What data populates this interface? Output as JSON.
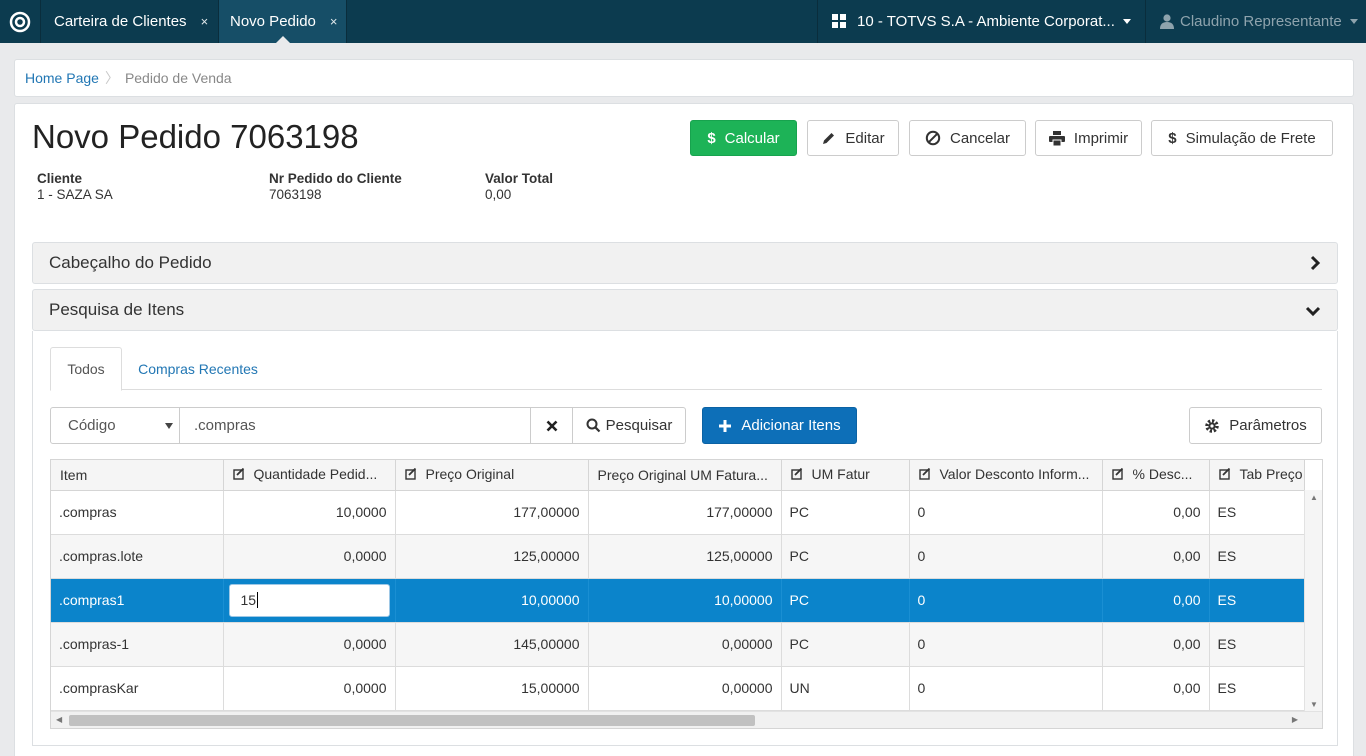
{
  "topbar": {
    "tabs": [
      {
        "label": "Carteira de Clientes",
        "close": "×"
      },
      {
        "label": "Novo Pedido",
        "close": "×"
      }
    ],
    "environment": "10 - TOTVS S.A - Ambiente Corporat...",
    "user": "Claudino Representante"
  },
  "breadcrumb": {
    "home": "Home Page",
    "current": "Pedido de Venda"
  },
  "page": {
    "title": "Novo Pedido 7063198"
  },
  "actions": {
    "calcular": "Calcular",
    "editar": "Editar",
    "cancelar": "Cancelar",
    "imprimir": "Imprimir",
    "frete": "Simulação de Frete"
  },
  "summary": {
    "cliente_label": "Cliente",
    "cliente_value": "1 - SAZA SA",
    "nr_label": "Nr Pedido do Cliente",
    "nr_value": "7063198",
    "total_label": "Valor Total",
    "total_value": "0,00"
  },
  "sections": {
    "header": "Cabeçalho do Pedido",
    "search": "Pesquisa de Itens"
  },
  "item_tabs": {
    "all": "Todos",
    "recent": "Compras Recentes"
  },
  "search": {
    "field": "Código",
    "query": ".compras",
    "search_button": "Pesquisar",
    "add_button": "Adicionar Itens",
    "params_button": "Parâmetros"
  },
  "grid": {
    "columns": [
      "Item",
      "Quantidade Pedid...",
      "Preço Original",
      "Preço Original UM Fatura...",
      "UM Fatur",
      "Valor Desconto Inform...",
      "% Desc...",
      "Tab Preço"
    ],
    "rows": [
      {
        "item": ".compras",
        "qty": "10,0000",
        "price": "177,00000",
        "price_um": "177,00000",
        "um": "PC",
        "disc_value": "0",
        "disc_pct": "0,00",
        "tab": "ES"
      },
      {
        "item": ".compras.lote",
        "qty": "0,0000",
        "price": "125,00000",
        "price_um": "125,00000",
        "um": "PC",
        "disc_value": "0",
        "disc_pct": "0,00",
        "tab": "ES"
      },
      {
        "item": ".compras1",
        "qty": "15",
        "price": "10,00000",
        "price_um": "10,00000",
        "um": "PC",
        "disc_value": "0",
        "disc_pct": "0,00",
        "tab": "ES"
      },
      {
        "item": ".compras-1",
        "qty": "0,0000",
        "price": "145,00000",
        "price_um": "0,00000",
        "um": "PC",
        "disc_value": "0",
        "disc_pct": "0,00",
        "tab": "ES"
      },
      {
        "item": ".comprasKar",
        "qty": "0,0000",
        "price": "15,00000",
        "price_um": "0,00000",
        "um": "UN",
        "disc_value": "0",
        "disc_pct": "0,00",
        "tab": "ES"
      }
    ]
  },
  "colors": {
    "topbar": "#0c3b4f",
    "calcular": "#1db357",
    "adicionar": "#0d6fb8",
    "selected_row": "#0b84cb",
    "link": "#2277b4"
  }
}
